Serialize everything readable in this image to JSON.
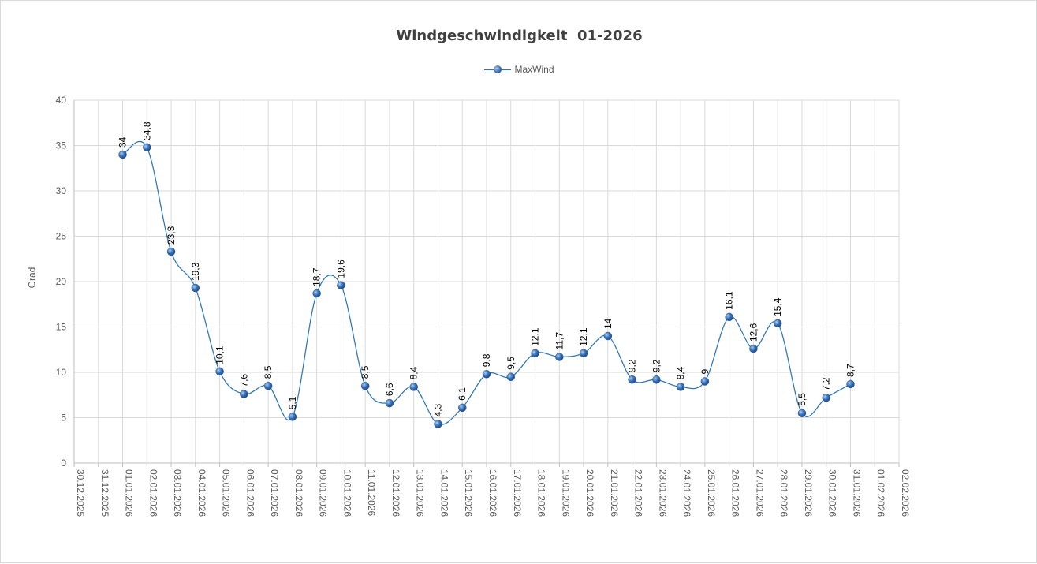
{
  "chart_data": {
    "type": "line",
    "title": "Windgeschwindigkeit  01-2026",
    "ylabel": "Grad",
    "xlabel": "",
    "ylim": [
      0,
      40
    ],
    "yticks": [
      "0",
      "5",
      "10",
      "15",
      "20",
      "25",
      "30",
      "35",
      "40"
    ],
    "grid": true,
    "legend_position": "top-center",
    "categories": [
      "30.12.2025",
      "31.12.2025",
      "01.01.2026",
      "02.01.2026",
      "03.01.2026",
      "04.01.2026",
      "05.01.2026",
      "06.01.2026",
      "07.01.2026",
      "08.01.2026",
      "09.01.2026",
      "10.01.2026",
      "11.01.2026",
      "12.01.2026",
      "13.01.2026",
      "14.01.2026",
      "15.01.2026",
      "16.01.2026",
      "17.01.2026",
      "18.01.2026",
      "19.01.2026",
      "20.01.2026",
      "21.01.2026",
      "22.01.2026",
      "23.01.2026",
      "24.01.2026",
      "25.01.2026",
      "26.01.2026",
      "27.01.2026",
      "28.01.2026",
      "29.01.2026",
      "30.01.2026",
      "31.01.2026",
      "01.02.2026",
      "02.02.2026"
    ],
    "series": [
      {
        "name": "MaxWind",
        "color": "#2e75b6",
        "values": [
          null,
          null,
          34,
          34.8,
          23.3,
          19.3,
          10.1,
          7.6,
          8.5,
          5.1,
          18.7,
          19.6,
          8.5,
          6.6,
          8.4,
          4.3,
          6.1,
          9.8,
          9.5,
          12.1,
          11.7,
          12.1,
          14,
          9.2,
          9.2,
          8.4,
          9,
          16.1,
          12.6,
          15.4,
          5.5,
          7.2,
          8.7,
          null,
          null
        ],
        "labels": [
          null,
          null,
          "34",
          "34,8",
          "23,3",
          "19,3",
          "10,1",
          "7,6",
          "8,5",
          "5,1",
          "18,7",
          "19,6",
          "8,5",
          "6,6",
          "8,4",
          "4,3",
          "6,1",
          "9,8",
          "9,5",
          "12,1",
          "11,7",
          "12,1",
          "14",
          "9,2",
          "9,2",
          "8,4",
          "9",
          "16,1",
          "12,6",
          "15,4",
          "5,5",
          "7,2",
          "8,7",
          null,
          null
        ]
      }
    ]
  }
}
